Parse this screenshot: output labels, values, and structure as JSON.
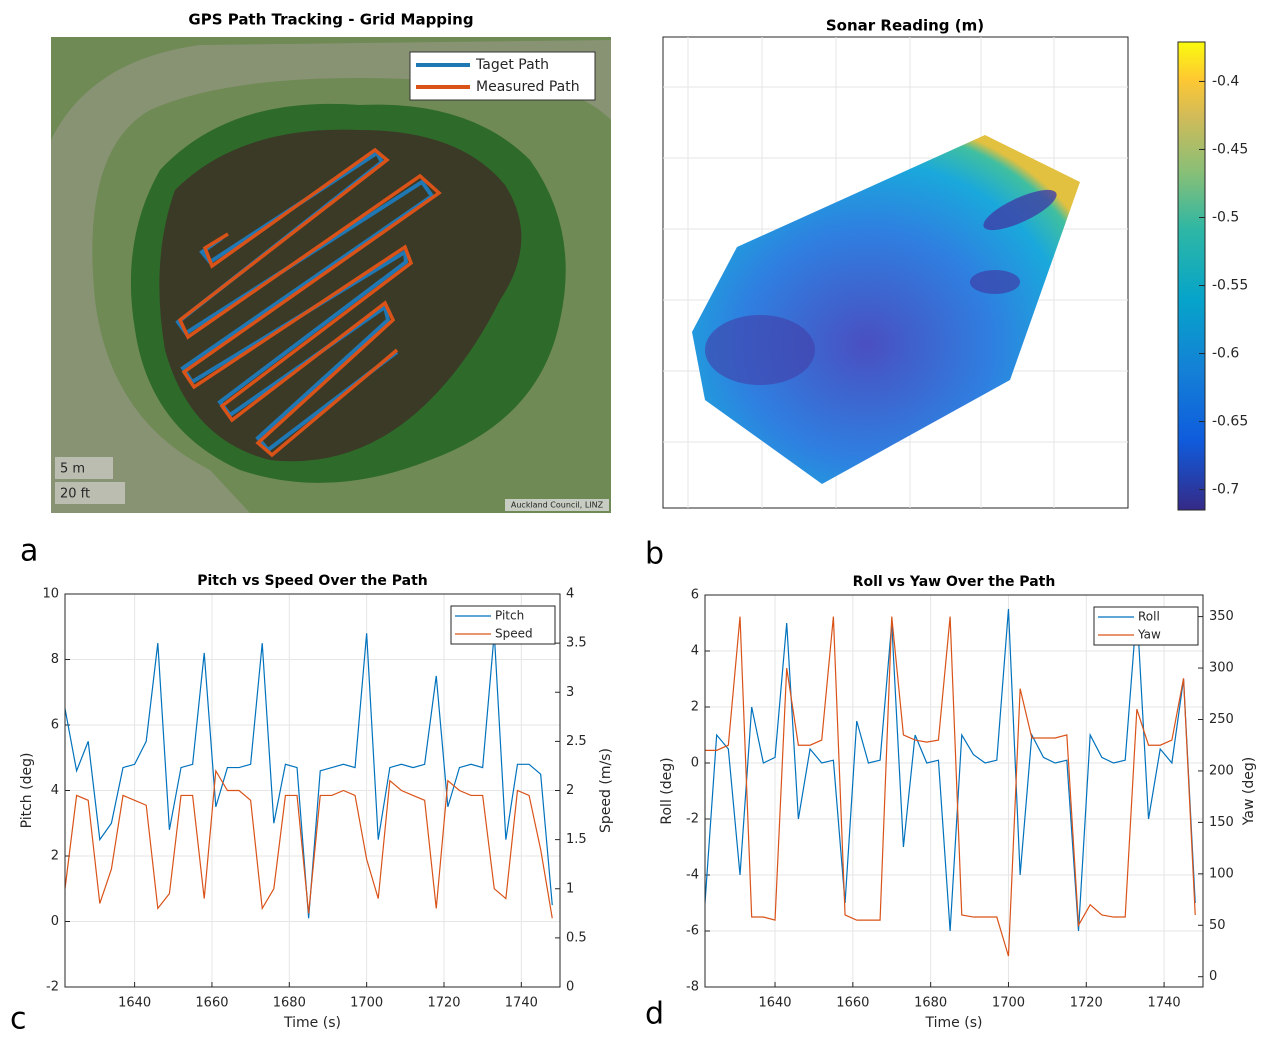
{
  "panel_labels": [
    "a",
    "b",
    "c",
    "d"
  ],
  "chart_data": [
    {
      "type": "map",
      "title": "GPS Path Tracking - Grid Mapping",
      "series": [
        {
          "name": "Taget Path",
          "color": "#1f77b4"
        },
        {
          "name": "Measured Path",
          "color": "#d95319"
        }
      ],
      "scale_labels": [
        "5 m",
        "20 ft"
      ],
      "attribution": "Auckland Council, LINZ"
    },
    {
      "type": "heatmap",
      "title": "Sonar Reading (m)",
      "clim": [
        -0.715,
        -0.371
      ],
      "cticks": [
        -0.4,
        -0.45,
        -0.5,
        -0.55,
        -0.6,
        -0.65,
        -0.7
      ]
    },
    {
      "type": "line",
      "title": "Pitch vs Speed Over the Path",
      "xlabel": "Time (s)",
      "ylabel": "Pitch (deg)",
      "y2label": "Speed (m/s)",
      "x": [
        1622,
        1625,
        1628,
        1631,
        1634,
        1637,
        1640,
        1643,
        1646,
        1649,
        1652,
        1655,
        1658,
        1661,
        1664,
        1667,
        1670,
        1673,
        1676,
        1679,
        1682,
        1685,
        1688,
        1691,
        1694,
        1697,
        1700,
        1703,
        1706,
        1709,
        1712,
        1715,
        1718,
        1721,
        1724,
        1727,
        1730,
        1733,
        1736,
        1739,
        1742,
        1745,
        1748
      ],
      "xlim": [
        1622,
        1750
      ],
      "xticks": [
        1640,
        1660,
        1680,
        1700,
        1720,
        1740
      ],
      "ylim": [
        -2,
        10
      ],
      "yticks": [
        -2,
        0,
        2,
        4,
        6,
        8,
        10
      ],
      "y2lim": [
        0,
        4
      ],
      "y2ticks": [
        0,
        0.5,
        1,
        1.5,
        2,
        2.5,
        3,
        3.5,
        4
      ],
      "grid": true,
      "legend": "upper right",
      "series": [
        {
          "name": "Pitch",
          "color": "#0072bd",
          "values": [
            6.5,
            4.6,
            5.5,
            2.5,
            3,
            4.7,
            4.8,
            5.5,
            8.5,
            2.8,
            4.7,
            4.8,
            8.2,
            3.5,
            4.7,
            4.7,
            4.8,
            8.5,
            3,
            4.8,
            4.7,
            0.1,
            4.6,
            4.7,
            4.8,
            4.7,
            8.8,
            2.5,
            4.7,
            4.8,
            4.7,
            4.8,
            7.5,
            3.5,
            4.7,
            4.8,
            4.7,
            8.8,
            2.5,
            4.8,
            4.8,
            4.5,
            0.5
          ]
        },
        {
          "name": "Speed",
          "color": "#d95319",
          "axis": "y2",
          "values": [
            1,
            1.95,
            1.9,
            0.85,
            1.2,
            1.95,
            1.9,
            1.85,
            0.8,
            0.95,
            1.95,
            1.95,
            0.9,
            2.2,
            2,
            2,
            1.9,
            0.8,
            1,
            1.95,
            1.95,
            0.75,
            1.95,
            1.95,
            2,
            1.95,
            1.3,
            0.9,
            2.1,
            2,
            1.95,
            1.9,
            0.8,
            2.1,
            2,
            1.95,
            1.95,
            1,
            0.9,
            2,
            1.95,
            1.4,
            0.7
          ]
        }
      ]
    },
    {
      "type": "line",
      "title": "Roll vs Yaw Over the Path",
      "xlabel": "Time (s)",
      "ylabel": "Roll (deg)",
      "y2label": "Yaw (deg)",
      "x": [
        1622,
        1625,
        1628,
        1631,
        1634,
        1637,
        1640,
        1643,
        1646,
        1649,
        1652,
        1655,
        1658,
        1661,
        1664,
        1667,
        1670,
        1673,
        1676,
        1679,
        1682,
        1685,
        1688,
        1691,
        1694,
        1697,
        1700,
        1703,
        1706,
        1709,
        1712,
        1715,
        1718,
        1721,
        1724,
        1727,
        1730,
        1733,
        1736,
        1739,
        1742,
        1745,
        1748
      ],
      "xlim": [
        1622,
        1750
      ],
      "xticks": [
        1640,
        1660,
        1680,
        1700,
        1720,
        1740
      ],
      "ylim": [
        -8,
        6
      ],
      "yticks": [
        -8,
        -6,
        -4,
        -2,
        0,
        2,
        4,
        6
      ],
      "y2lim": [
        -10,
        371
      ],
      "y2ticks": [
        0,
        50,
        100,
        150,
        200,
        250,
        300,
        350
      ],
      "grid": true,
      "legend": "upper right",
      "series": [
        {
          "name": "Roll",
          "color": "#0072bd",
          "values": [
            -5,
            1,
            0.5,
            -4,
            2,
            0,
            0.2,
            5,
            -2,
            0.5,
            0,
            0.1,
            -5,
            1.5,
            0,
            0.1,
            5,
            -3,
            1,
            0,
            0.1,
            -6,
            1,
            0.3,
            0,
            0.1,
            5.5,
            -4,
            1,
            0.2,
            0,
            0.1,
            -6,
            1,
            0.2,
            0,
            0.1,
            5.5,
            -2,
            0.5,
            0,
            3,
            -5
          ]
        },
        {
          "name": "Yaw",
          "color": "#d95319",
          "axis": "y2",
          "values": [
            220,
            220,
            225,
            350,
            58,
            58,
            55,
            300,
            225,
            225,
            230,
            350,
            60,
            55,
            55,
            55,
            350,
            235,
            230,
            228,
            230,
            350,
            60,
            58,
            58,
            58,
            20,
            280,
            232,
            232,
            232,
            235,
            50,
            70,
            60,
            58,
            58,
            260,
            225,
            225,
            230,
            290,
            60
          ]
        }
      ]
    }
  ]
}
